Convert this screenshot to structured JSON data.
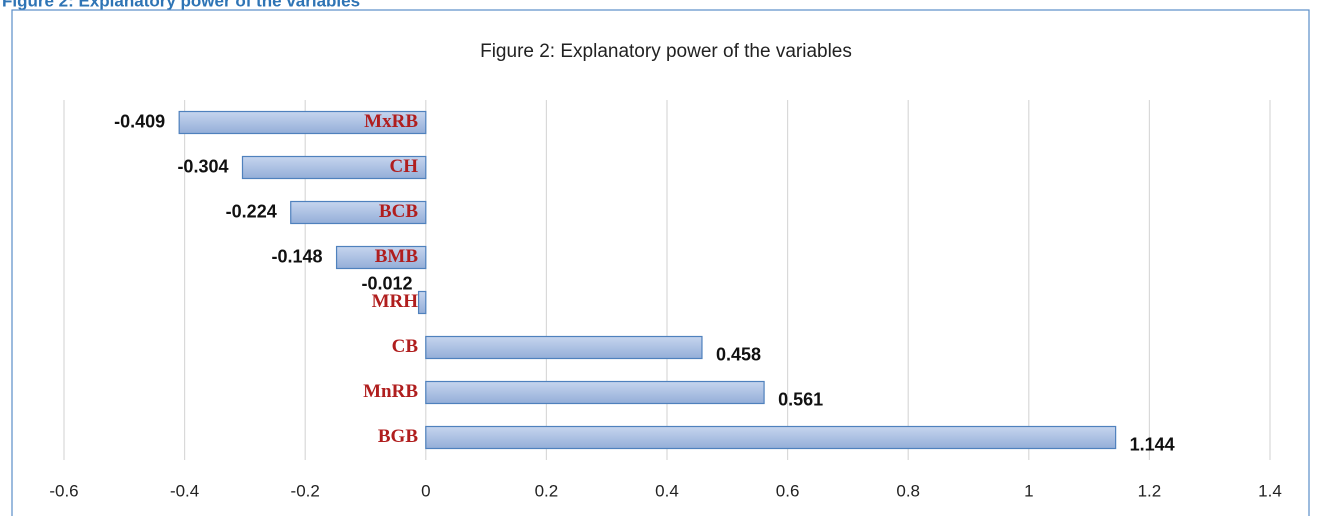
{
  "caption": "Figure 2: Explanatory power of the variables",
  "chart_data": {
    "type": "hbar",
    "title": "Figure 2: Explanatory power of the variables",
    "categories": [
      "MxRB",
      "CH",
      "BCB",
      "BMB",
      "MRH",
      "CB",
      "MnRB",
      "BGB"
    ],
    "values": [
      -0.409,
      -0.304,
      -0.224,
      -0.148,
      -0.012,
      0.458,
      0.561,
      1.144
    ],
    "color": "#4f81bd",
    "xlim": [
      -0.6,
      1.4
    ],
    "xticks": [
      -0.6,
      -0.4,
      -0.2,
      0,
      0.2,
      0.4,
      0.6,
      0.8,
      1,
      1.2,
      1.4
    ],
    "grid": true
  }
}
